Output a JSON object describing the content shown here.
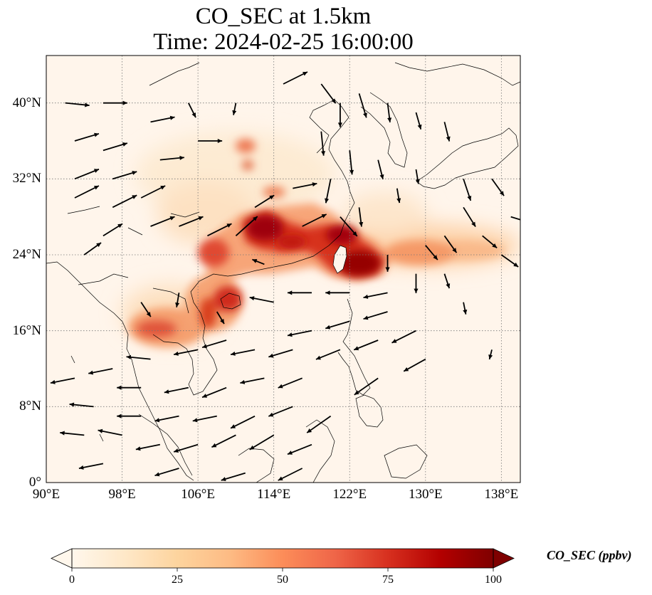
{
  "title": {
    "line1": "CO_SEC at 1.5km",
    "line2": "Time: 2024-02-25 16:00:00"
  },
  "map": {
    "lon_range": [
      90,
      140
    ],
    "lat_range": [
      0,
      45
    ],
    "lon_ticks": [
      {
        "value": 90,
        "label": "90°E"
      },
      {
        "value": 98,
        "label": "98°E"
      },
      {
        "value": 106,
        "label": "106°E"
      },
      {
        "value": 114,
        "label": "114°E"
      },
      {
        "value": 122,
        "label": "122°E"
      },
      {
        "value": 130,
        "label": "130°E"
      },
      {
        "value": 138,
        "label": "138°E"
      }
    ],
    "lat_ticks": [
      {
        "value": 0,
        "label": "0°"
      },
      {
        "value": 8,
        "label": "8°N"
      },
      {
        "value": 16,
        "label": "16°N"
      },
      {
        "value": 24,
        "label": "24°N"
      },
      {
        "value": 32,
        "label": "32°N"
      },
      {
        "value": 40,
        "label": "40°N"
      }
    ],
    "gridlines": "dotted",
    "background_color": "#fff5eb",
    "coastline_color": "#000000"
  },
  "colorbar": {
    "label": "CO_SEC (ppbv)",
    "colormap": "OrRd",
    "range": [
      0,
      100
    ],
    "ticks": [
      {
        "value": 0,
        "label": "0"
      },
      {
        "value": 25,
        "label": "25"
      },
      {
        "value": 50,
        "label": "50"
      },
      {
        "value": 75,
        "label": "75"
      },
      {
        "value": 100,
        "label": "100"
      }
    ],
    "extend": "both"
  },
  "chart_data": {
    "type": "heatmap",
    "variable": "CO_SEC",
    "units": "ppbv",
    "level": "1.5km",
    "concentration_field": [
      {
        "lon": 112,
        "lat": 26.5,
        "value": 90
      },
      {
        "lon": 119,
        "lat": 26.5,
        "value": 88
      },
      {
        "lon": 123,
        "lat": 23,
        "value": 95
      },
      {
        "lon": 126,
        "lat": 23,
        "value": 75
      },
      {
        "lon": 129,
        "lat": 23.5,
        "value": 40
      },
      {
        "lon": 134,
        "lat": 24,
        "value": 25
      },
      {
        "lon": 109,
        "lat": 24.5,
        "value": 70
      },
      {
        "lon": 108,
        "lat": 20,
        "value": 75
      },
      {
        "lon": 106,
        "lat": 19,
        "value": 70
      },
      {
        "lon": 102,
        "lat": 16,
        "value": 55
      },
      {
        "lon": 110,
        "lat": 35.5,
        "value": 55
      },
      {
        "lon": 115,
        "lat": 29.5,
        "value": 45
      },
      {
        "lon": 112,
        "lat": 31,
        "value": 12
      },
      {
        "lon": 104,
        "lat": 29,
        "value": 10
      }
    ],
    "wind_vectors": [
      {
        "lon": 92,
        "lat": 40,
        "u": 1,
        "v": -0.1
      },
      {
        "lon": 96,
        "lat": 40,
        "u": 1,
        "v": 0
      },
      {
        "lon": 93,
        "lat": 36,
        "u": 1,
        "v": 0.3
      },
      {
        "lon": 96,
        "lat": 35,
        "u": 1,
        "v": 0.3
      },
      {
        "lon": 93,
        "lat": 32,
        "u": 1,
        "v": 0.4
      },
      {
        "lon": 97,
        "lat": 32,
        "u": 1,
        "v": 0.3
      },
      {
        "lon": 93,
        "lat": 30,
        "u": 1,
        "v": 0.5
      },
      {
        "lon": 97,
        "lat": 29,
        "u": 1,
        "v": 0.5
      },
      {
        "lon": 100,
        "lat": 30,
        "u": 1,
        "v": 0.5
      },
      {
        "lon": 101,
        "lat": 27,
        "u": 1,
        "v": 0.4
      },
      {
        "lon": 104,
        "lat": 27,
        "u": 1,
        "v": 0.4
      },
      {
        "lon": 107,
        "lat": 26,
        "u": 1,
        "v": 0.5
      },
      {
        "lon": 110,
        "lat": 26,
        "u": 1,
        "v": 0.9
      },
      {
        "lon": 102,
        "lat": 34,
        "u": 1,
        "v": 0.1
      },
      {
        "lon": 106,
        "lat": 36,
        "u": 1,
        "v": 0
      },
      {
        "lon": 101,
        "lat": 38,
        "u": 1,
        "v": 0.2
      },
      {
        "lon": 105,
        "lat": 40,
        "u": 0.3,
        "v": -0.6
      },
      {
        "lon": 110,
        "lat": 40,
        "u": -0.1,
        "v": -0.5
      },
      {
        "lon": 115,
        "lat": 42,
        "u": 1,
        "v": 0.5
      },
      {
        "lon": 119,
        "lat": 42,
        "u": 0.6,
        "v": -0.8
      },
      {
        "lon": 121,
        "lat": 40,
        "u": 0,
        "v": -1
      },
      {
        "lon": 123,
        "lat": 41,
        "u": 0.3,
        "v": -1
      },
      {
        "lon": 126,
        "lat": 40,
        "u": 0.1,
        "v": -0.8
      },
      {
        "lon": 129,
        "lat": 39,
        "u": 0.2,
        "v": -0.7
      },
      {
        "lon": 132,
        "lat": 38,
        "u": 0.2,
        "v": -0.8
      },
      {
        "lon": 119,
        "lat": 37,
        "u": 0.1,
        "v": -1
      },
      {
        "lon": 122,
        "lat": 35,
        "u": 0.1,
        "v": -1
      },
      {
        "lon": 125,
        "lat": 34,
        "u": 0.2,
        "v": -0.8
      },
      {
        "lon": 129,
        "lat": 33,
        "u": 0.1,
        "v": -0.6
      },
      {
        "lon": 120,
        "lat": 32,
        "u": -0.2,
        "v": -1
      },
      {
        "lon": 127,
        "lat": 31,
        "u": 0.1,
        "v": -0.6
      },
      {
        "lon": 134,
        "lat": 32,
        "u": 0.3,
        "v": -0.9
      },
      {
        "lon": 137,
        "lat": 32,
        "u": 0.5,
        "v": -0.7
      },
      {
        "lon": 134,
        "lat": 29,
        "u": 0.5,
        "v": -0.8
      },
      {
        "lon": 139,
        "lat": 28,
        "u": 1,
        "v": -0.3
      },
      {
        "lon": 132,
        "lat": 26,
        "u": 0.5,
        "v": -0.7
      },
      {
        "lon": 136,
        "lat": 26,
        "u": 0.6,
        "v": -0.5
      },
      {
        "lon": 138,
        "lat": 24,
        "u": 0.7,
        "v": -0.5
      },
      {
        "lon": 130,
        "lat": 25,
        "u": 0.5,
        "v": -0.6
      },
      {
        "lon": 129,
        "lat": 22,
        "u": 0,
        "v": -0.8
      },
      {
        "lon": 132,
        "lat": 22,
        "u": 0.2,
        "v": -0.6
      },
      {
        "lon": 126,
        "lat": 24,
        "u": 0,
        "v": -0.7
      },
      {
        "lon": 126,
        "lat": 20,
        "u": -1,
        "v": -0.2
      },
      {
        "lon": 122,
        "lat": 20,
        "u": -1,
        "v": 0
      },
      {
        "lon": 118,
        "lat": 20,
        "u": -1,
        "v": 0
      },
      {
        "lon": 114,
        "lat": 19,
        "u": -1,
        "v": 0.2
      },
      {
        "lon": 126,
        "lat": 18,
        "u": -1,
        "v": -0.3
      },
      {
        "lon": 122,
        "lat": 17,
        "u": -1,
        "v": -0.3
      },
      {
        "lon": 118,
        "lat": 16,
        "u": -1,
        "v": -0.2
      },
      {
        "lon": 129,
        "lat": 16,
        "u": -1,
        "v": -0.5
      },
      {
        "lon": 125,
        "lat": 15,
        "u": -1,
        "v": -0.4
      },
      {
        "lon": 121,
        "lat": 14,
        "u": -1,
        "v": -0.4
      },
      {
        "lon": 116,
        "lat": 14,
        "u": -1,
        "v": -0.3
      },
      {
        "lon": 112,
        "lat": 14,
        "u": -1,
        "v": -0.2
      },
      {
        "lon": 109,
        "lat": 15,
        "u": -1,
        "v": -0.3
      },
      {
        "lon": 106,
        "lat": 14,
        "u": -1,
        "v": -0.2
      },
      {
        "lon": 101,
        "lat": 13,
        "u": -1,
        "v": 0.1
      },
      {
        "lon": 97,
        "lat": 12,
        "u": -1,
        "v": -0.2
      },
      {
        "lon": 93,
        "lat": 11,
        "u": -1,
        "v": -0.2
      },
      {
        "lon": 113,
        "lat": 11,
        "u": -1,
        "v": -0.2
      },
      {
        "lon": 117,
        "lat": 11,
        "u": -1,
        "v": -0.4
      },
      {
        "lon": 125,
        "lat": 11,
        "u": -1,
        "v": -0.7
      },
      {
        "lon": 109,
        "lat": 10,
        "u": -1,
        "v": -0.4
      },
      {
        "lon": 105,
        "lat": 10,
        "u": -1,
        "v": -0.2
      },
      {
        "lon": 100,
        "lat": 10,
        "u": -1,
        "v": 0
      },
      {
        "lon": 95,
        "lat": 8,
        "u": -1,
        "v": 0.1
      },
      {
        "lon": 100,
        "lat": 7,
        "u": -1,
        "v": 0
      },
      {
        "lon": 104,
        "lat": 7,
        "u": -1,
        "v": -0.2
      },
      {
        "lon": 108,
        "lat": 7,
        "u": -1,
        "v": -0.2
      },
      {
        "lon": 112,
        "lat": 7,
        "u": -1,
        "v": -0.5
      },
      {
        "lon": 116,
        "lat": 8,
        "u": -1,
        "v": -0.4
      },
      {
        "lon": 120,
        "lat": 7,
        "u": -1,
        "v": -0.7
      },
      {
        "lon": 94,
        "lat": 5,
        "u": -1,
        "v": 0.1
      },
      {
        "lon": 98,
        "lat": 5,
        "u": -1,
        "v": 0.2
      },
      {
        "lon": 102,
        "lat": 4,
        "u": -1,
        "v": -0.2
      },
      {
        "lon": 106,
        "lat": 4,
        "u": -1,
        "v": -0.3
      },
      {
        "lon": 110,
        "lat": 5,
        "u": -1,
        "v": -0.5
      },
      {
        "lon": 114,
        "lat": 5,
        "u": -1,
        "v": -0.6
      },
      {
        "lon": 118,
        "lat": 4,
        "u": -1,
        "v": -0.4
      },
      {
        "lon": 96,
        "lat": 2,
        "u": -1,
        "v": -0.2
      },
      {
        "lon": 104,
        "lat": 1.5,
        "u": -1,
        "v": -0.3
      },
      {
        "lon": 111,
        "lat": 1,
        "u": -1,
        "v": -0.3
      },
      {
        "lon": 117,
        "lat": 1.5,
        "u": -1,
        "v": -0.5
      },
      {
        "lon": 130,
        "lat": 13,
        "u": -0.9,
        "v": -0.5
      },
      {
        "lon": 134,
        "lat": 19,
        "u": 0.1,
        "v": -0.5
      },
      {
        "lon": 137,
        "lat": 14,
        "u": -0.1,
        "v": -0.4
      },
      {
        "lon": 104,
        "lat": 20,
        "u": -0.1,
        "v": -0.6
      },
      {
        "lon": 100,
        "lat": 19,
        "u": 0.4,
        "v": -0.6
      },
      {
        "lon": 94,
        "lat": 24,
        "u": 0.7,
        "v": 0.5
      },
      {
        "lon": 96,
        "lat": 26,
        "u": 0.8,
        "v": 0.5
      },
      {
        "lon": 108,
        "lat": 18,
        "u": 0.3,
        "v": -0.5
      },
      {
        "lon": 113,
        "lat": 23,
        "u": -0.5,
        "v": 0.2
      },
      {
        "lon": 116,
        "lat": 31,
        "u": 1,
        "v": 0.2
      },
      {
        "lon": 112,
        "lat": 29,
        "u": 0.8,
        "v": 0.5
      },
      {
        "lon": 117,
        "lat": 27,
        "u": 1,
        "v": 0.5
      },
      {
        "lon": 121,
        "lat": 28,
        "u": 0.7,
        "v": -0.8
      },
      {
        "lon": 123,
        "lat": 29,
        "u": 0.1,
        "v": -0.8
      }
    ]
  }
}
